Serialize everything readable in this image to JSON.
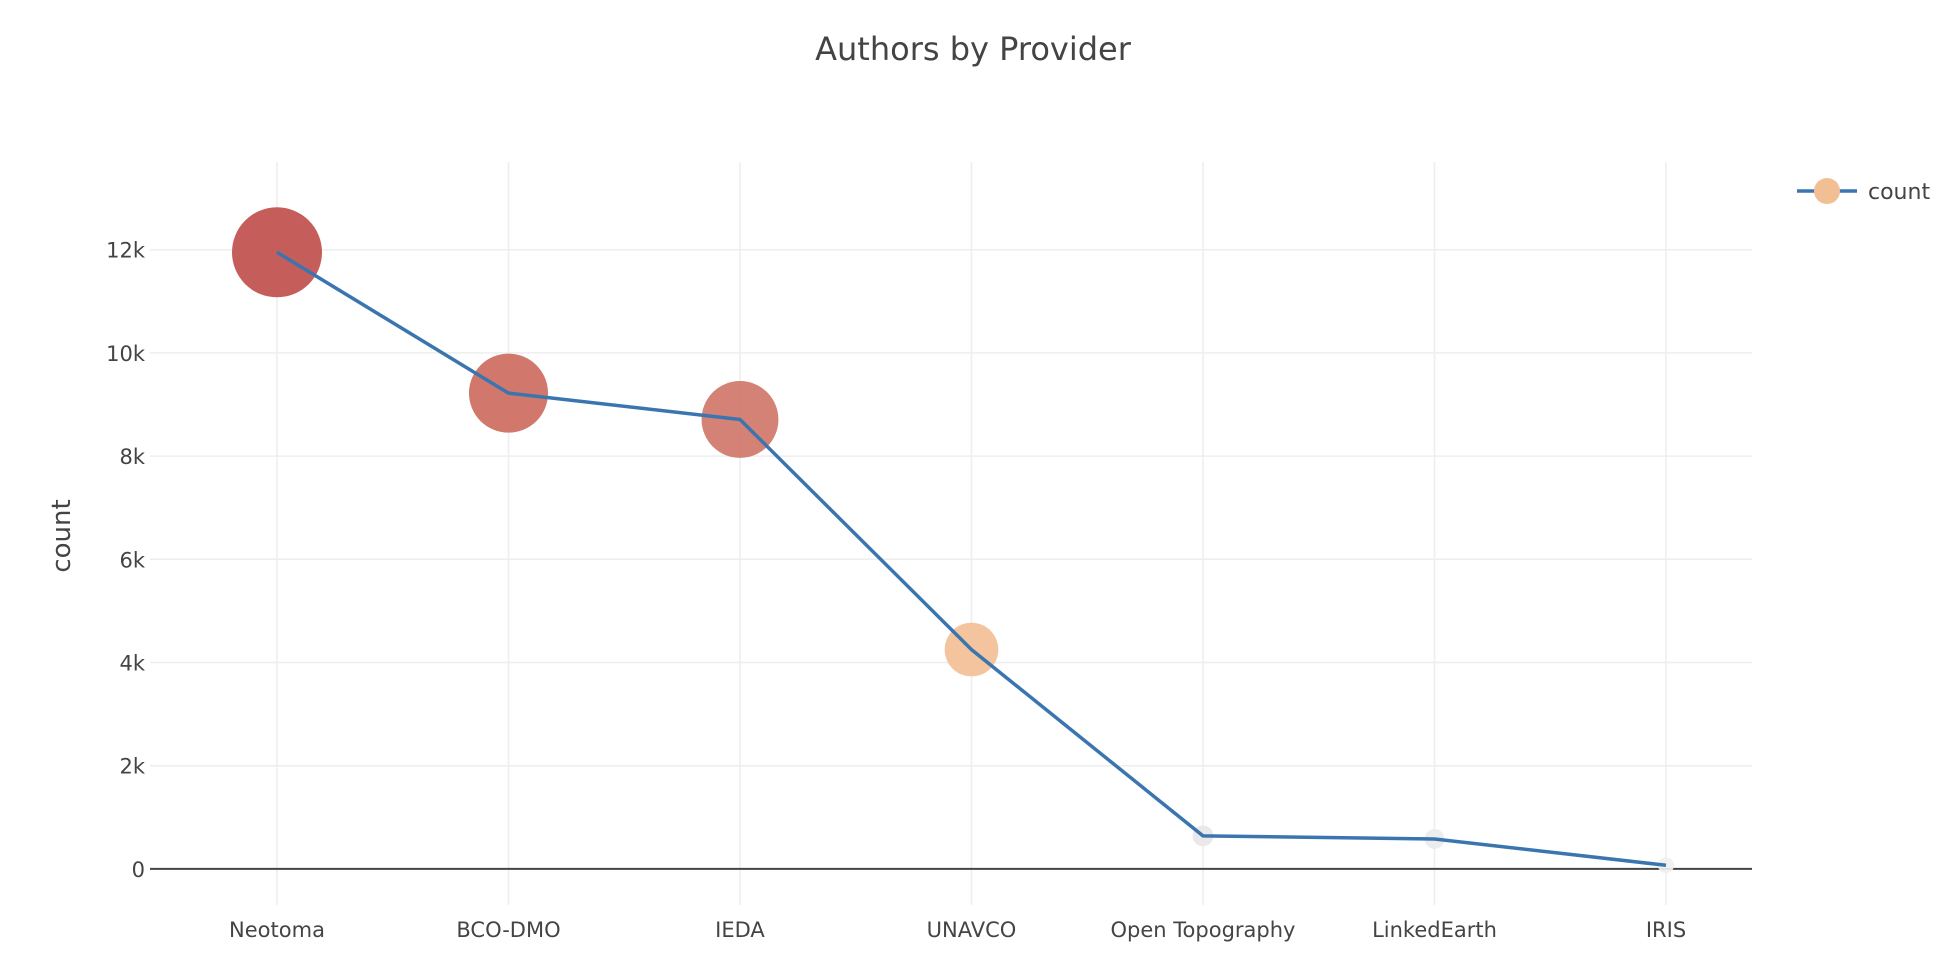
{
  "chart_data": {
    "type": "line",
    "title": "Authors by Provider",
    "xlabel": "",
    "ylabel": "count",
    "categories": [
      "Neotoma",
      "BCO-DMO",
      "IEDA",
      "UNAVCO",
      "Open Topography",
      "LinkedEarth",
      "IRIS"
    ],
    "series": [
      {
        "name": "count",
        "values": [
          11950,
          9220,
          8710,
          4250,
          640,
          580,
          70
        ],
        "line_color": "#3b75af",
        "marker_colors": [
          "#c0504d",
          "#cd6b5f",
          "#d0766a",
          "#f2bf95",
          "#e8e6e6",
          "#ececec",
          "#f0f0f0"
        ]
      }
    ],
    "ylim": [
      -700,
      13700
    ],
    "yticks": [
      0,
      2000,
      4000,
      6000,
      8000,
      10000,
      12000
    ],
    "ytick_labels": [
      "0",
      "2k",
      "4k",
      "6k",
      "8k",
      "10k",
      "12k"
    ],
    "grid": true,
    "legend": {
      "position": "top-right",
      "label": "count",
      "marker_color": "#f2bf95",
      "line_color": "#3b75af"
    }
  }
}
